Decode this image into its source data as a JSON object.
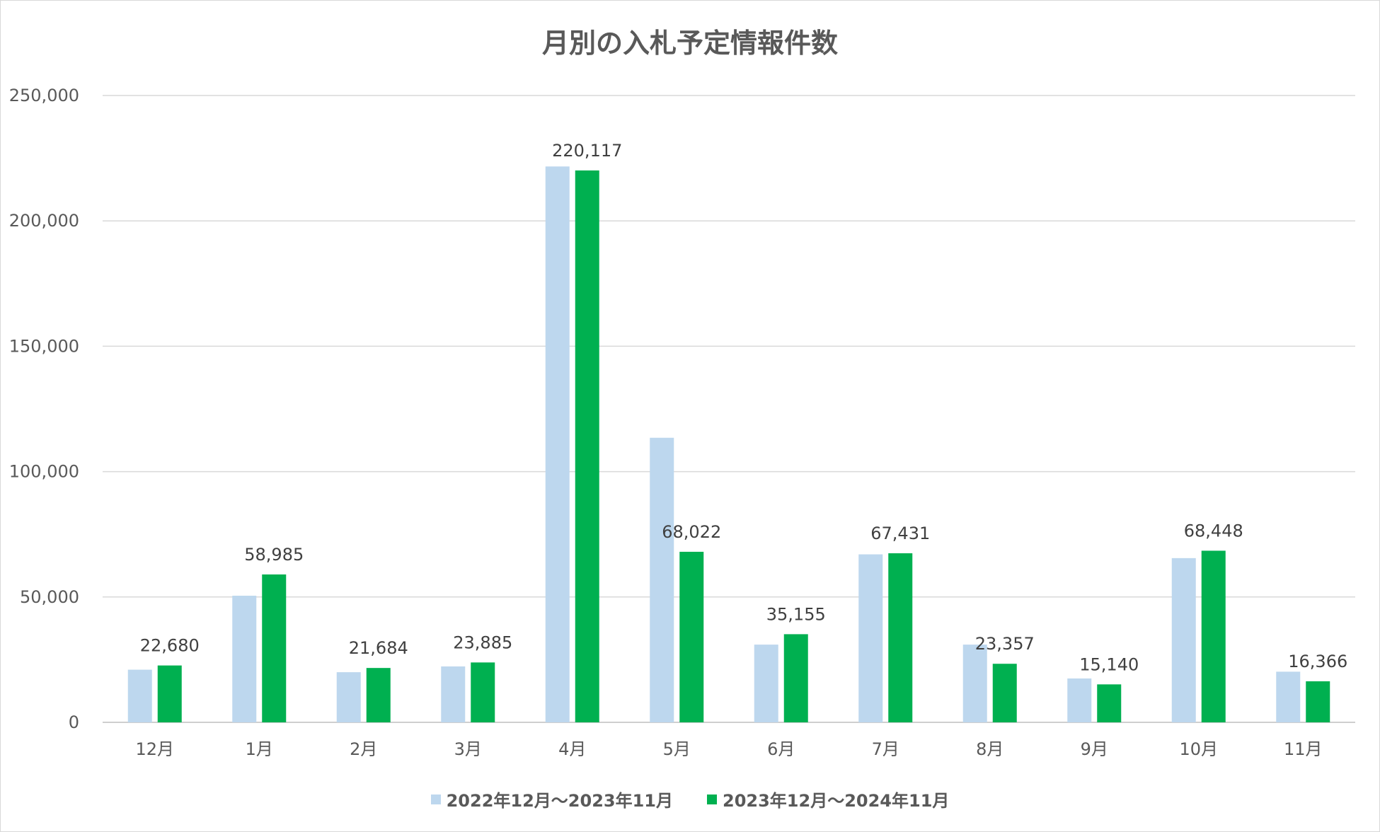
{
  "chart_data": {
    "type": "bar",
    "title": "月別の入札予定情報件数",
    "categories": [
      "12月",
      "1月",
      "2月",
      "3月",
      "4月",
      "5月",
      "6月",
      "7月",
      "8月",
      "9月",
      "10月",
      "11月"
    ],
    "series": [
      {
        "name": "2022年12月～2023年11月",
        "color": "#bdd7ee",
        "values": [
          21000,
          50500,
          20000,
          22300,
          221700,
          113500,
          31000,
          67000,
          31000,
          17500,
          65500,
          20200
        ],
        "data_labels": []
      },
      {
        "name": "2023年12月～2024年11月",
        "color": "#00b050",
        "values": [
          22680,
          58985,
          21684,
          23885,
          220117,
          68022,
          35155,
          67431,
          23357,
          15140,
          68448,
          16366
        ],
        "data_labels": [
          "22,680",
          "58,985",
          "21,684",
          "23,885",
          "220,117",
          "68,022",
          "35,155",
          "67,431",
          "23,357",
          "15,140",
          "68,448",
          "16,366"
        ]
      }
    ],
    "ylim": [
      0,
      250000
    ],
    "yticks": [
      0,
      50000,
      100000,
      150000,
      200000,
      250000
    ],
    "ytick_labels": [
      "0",
      "50,000",
      "100,000",
      "150,000",
      "200,000",
      "250,000"
    ],
    "grid": true,
    "legend_position": "bottom"
  }
}
